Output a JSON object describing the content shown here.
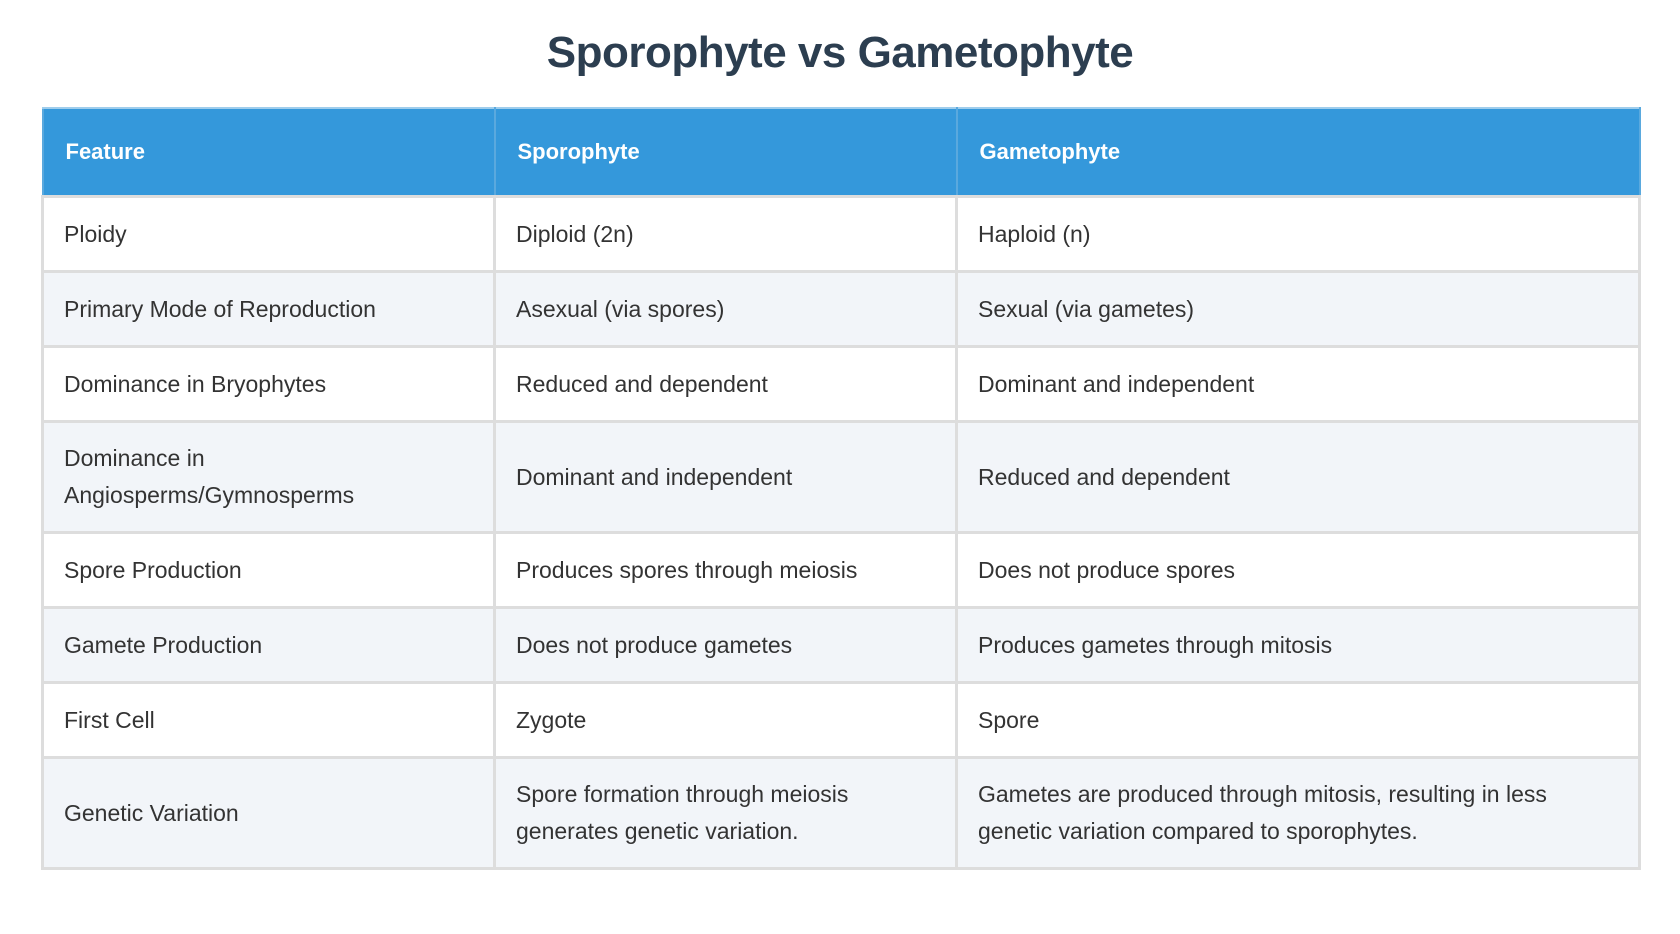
{
  "title": "Sporophyte vs Gametophyte",
  "colors": {
    "header_bg": "#3498db",
    "title_text": "#2c3e50",
    "stripe_bg": "#f2f5f9",
    "border": "#dddddd"
  },
  "table": {
    "headers": [
      "Feature",
      "Sporophyte",
      "Gametophyte"
    ],
    "rows": [
      [
        "Ploidy",
        "Diploid (2n)",
        "Haploid (n)"
      ],
      [
        "Primary Mode of Reproduction",
        "Asexual (via spores)",
        "Sexual (via gametes)"
      ],
      [
        "Dominance in Bryophytes",
        "Reduced and dependent",
        "Dominant and independent"
      ],
      [
        "Dominance in Angiosperms/Gymnosperms",
        "Dominant and independent",
        "Reduced and dependent"
      ],
      [
        "Spore Production",
        "Produces spores through meiosis",
        "Does not produce spores"
      ],
      [
        "Gamete Production",
        "Does not produce gametes",
        "Produces gametes through mitosis"
      ],
      [
        "First Cell",
        "Zygote",
        "Spore"
      ],
      [
        "Genetic Variation",
        "Spore formation through meiosis generates genetic variation.",
        "Gametes are produced through mitosis, resulting in less genetic variation compared to sporophytes."
      ]
    ]
  }
}
